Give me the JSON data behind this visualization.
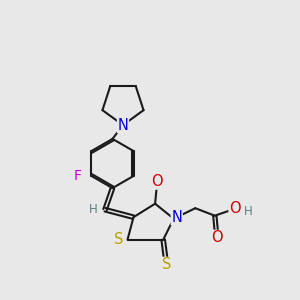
{
  "bg": "#e8e8e8",
  "bond_color": "#1a1a1a",
  "bond_lw": 1.5,
  "atom_colors": {
    "C": "#1a1a1a",
    "H": "#5a8080",
    "N": "#0000cc",
    "O": "#cc0000",
    "S": "#b8a000",
    "F": "#cc00cc"
  },
  "fs": 10.0,
  "fs_small": 8.5,
  "xlim": [
    0,
    10
  ],
  "ylim": [
    0,
    10
  ]
}
